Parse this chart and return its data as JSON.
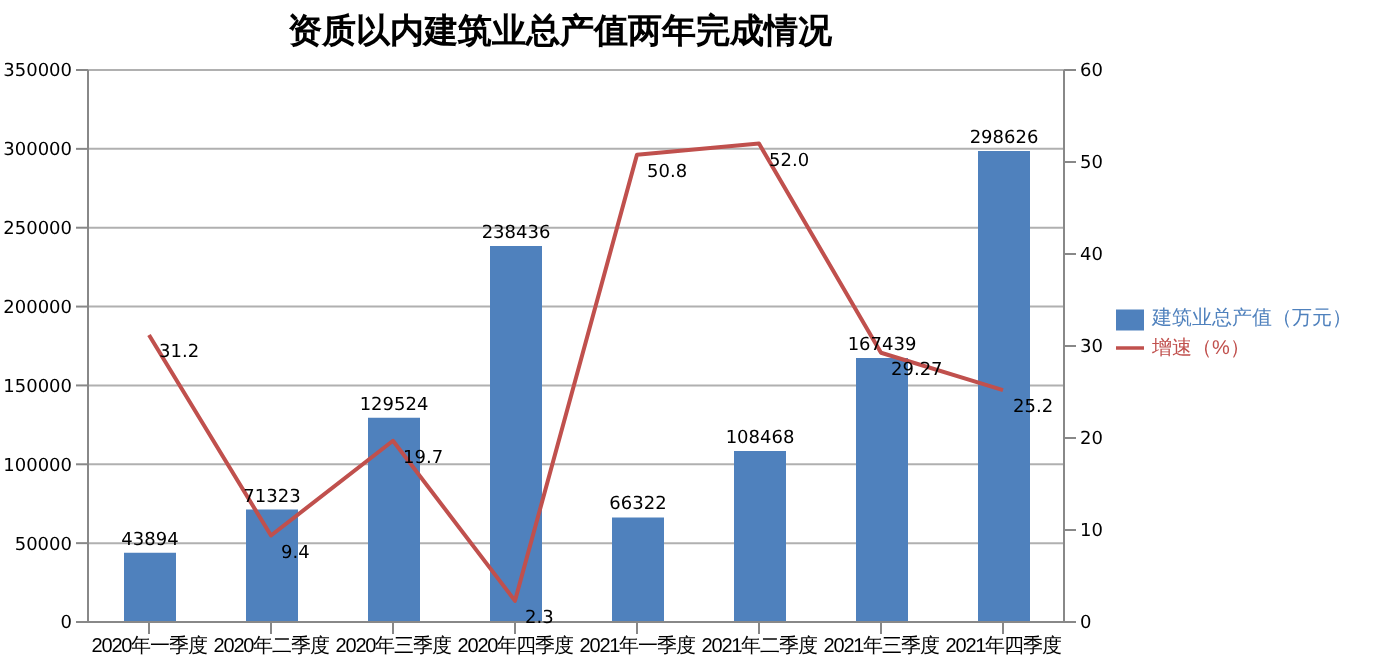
{
  "chart_data": {
    "type": "bar",
    "title": "资质以内建筑业总产值两年完成情况",
    "categories": [
      "2020年一季度",
      "2020年二季度",
      "2020年三季度",
      "2020年四季度",
      "2021年一季度",
      "2021年二季度",
      "2021年三季度",
      "2021年四季度"
    ],
    "series": [
      {
        "name": "建筑业总产值（万元）",
        "color": "#4f81bd",
        "values": [
          43894,
          71323,
          129524,
          238436,
          66322,
          108468,
          167439,
          298626
        ],
        "value_labels": [
          "43894",
          "71323",
          "129524",
          "238436",
          "66322",
          "108468",
          "167439",
          "298626"
        ]
      },
      {
        "name": "增速（%）",
        "type": "line",
        "axis": "y2",
        "color": "#c0504d",
        "values": [
          31.2,
          9.4,
          19.7,
          2.3,
          50.8,
          52.0,
          29.27,
          25.2
        ],
        "value_labels": [
          "31.2",
          "9.4",
          "19.7",
          "2.3",
          "50.8",
          "52.0",
          "29.27",
          "25.2"
        ]
      }
    ],
    "ylim": [
      0,
      350000
    ],
    "yticks": [
      0,
      50000,
      100000,
      150000,
      200000,
      250000,
      300000,
      350000
    ],
    "y2lim": [
      0,
      60
    ],
    "y2ticks": [
      0,
      10,
      20,
      30,
      40,
      50,
      60
    ],
    "grid": "y",
    "legend": "right",
    "marker": "none"
  }
}
